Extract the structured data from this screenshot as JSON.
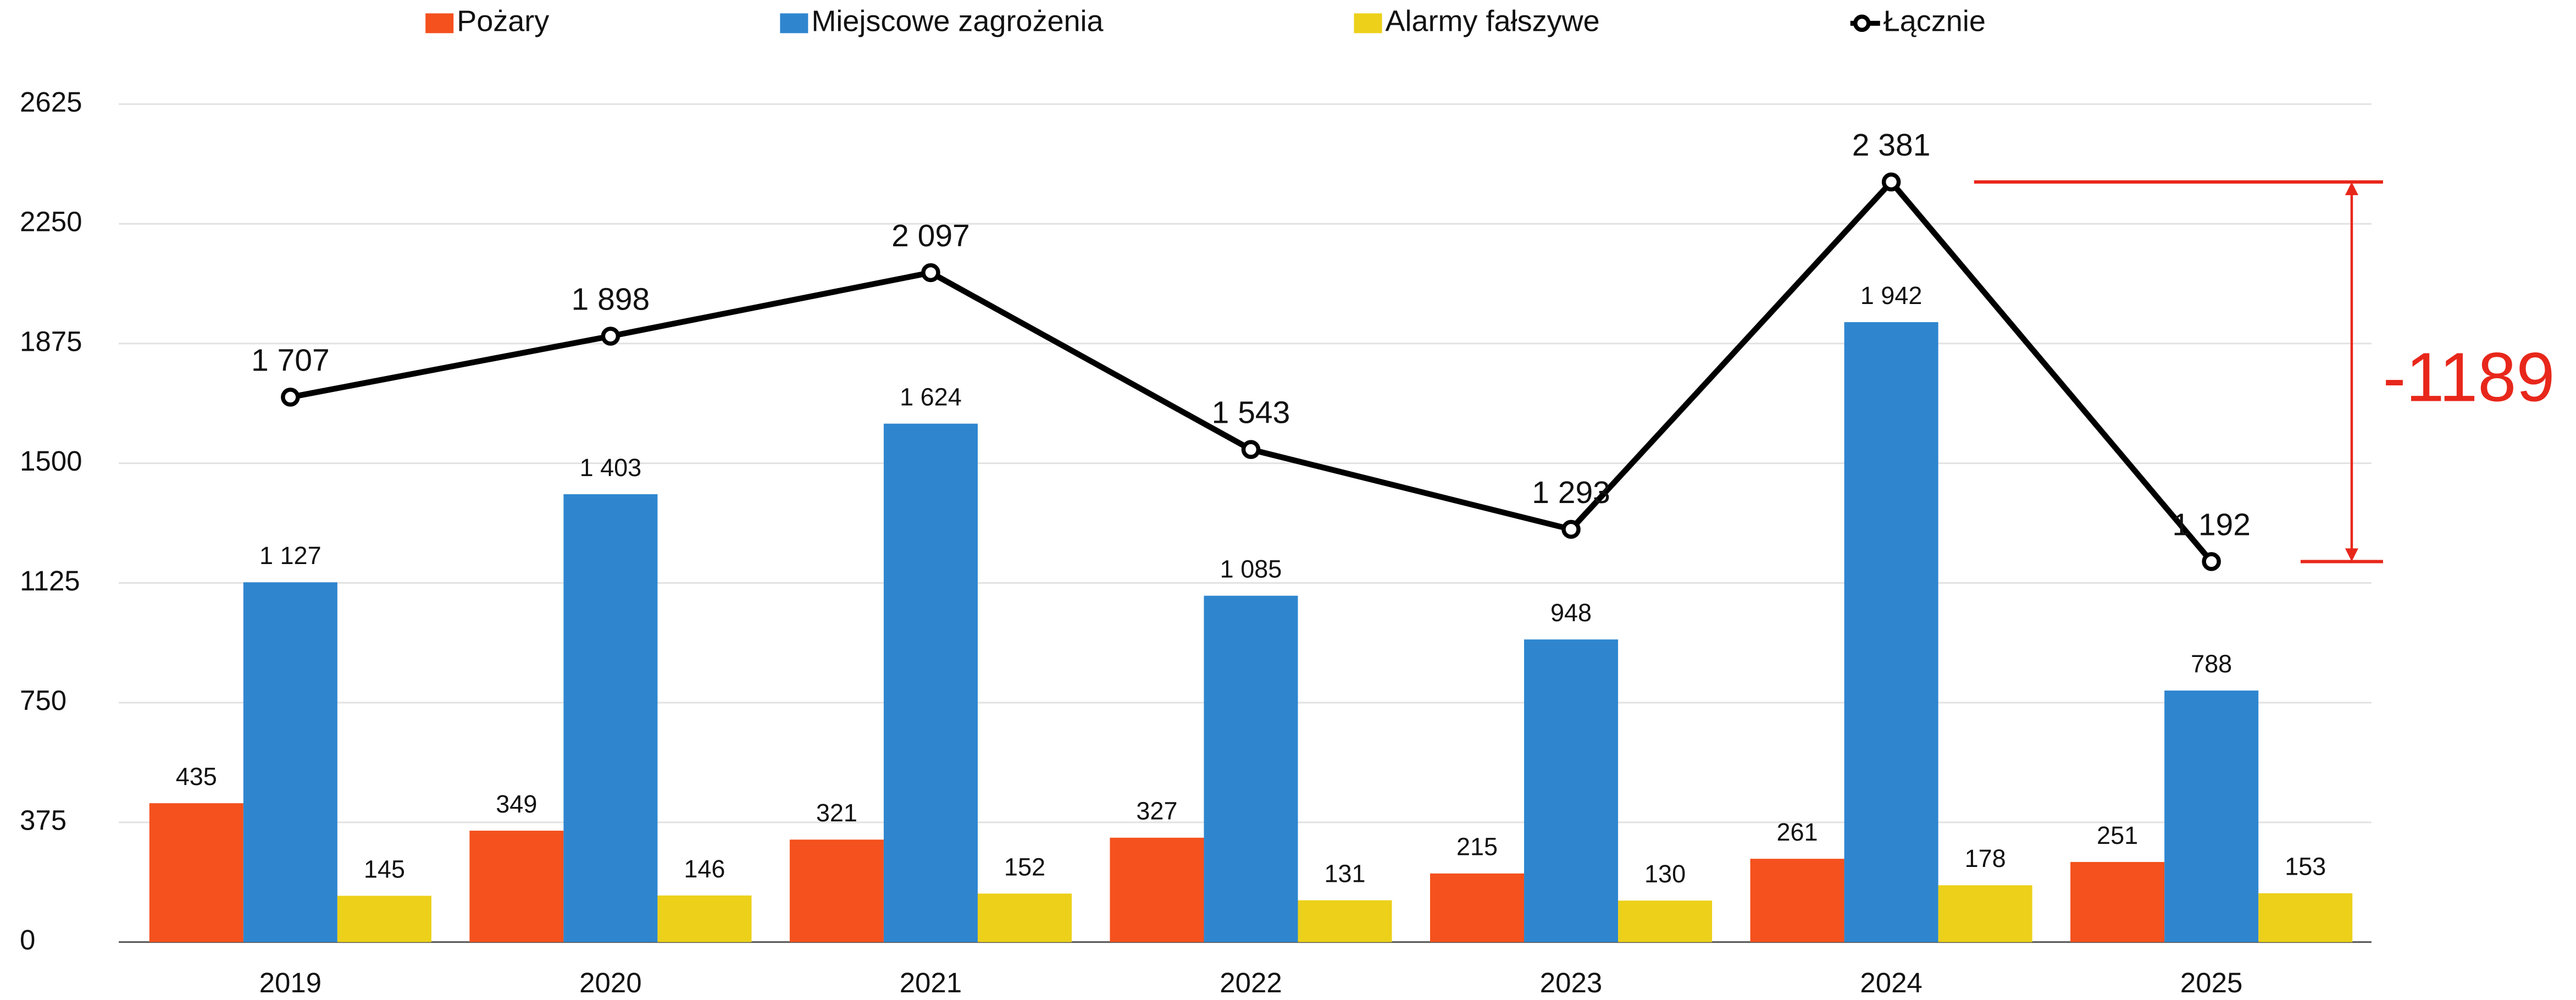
{
  "chart_data": {
    "type": "bar",
    "categories": [
      "2019",
      "2020",
      "2021",
      "2022",
      "2023",
      "2024",
      "2025"
    ],
    "series": [
      {
        "name": "Pożary",
        "color": "#f4511e",
        "values": [
          435,
          349,
          321,
          327,
          215,
          261,
          251
        ]
      },
      {
        "name": "Miejscowe zagrożenia",
        "color": "#2f86cf",
        "values": [
          1127,
          1403,
          1624,
          1085,
          948,
          1942,
          788
        ],
        "value_labels": [
          "1 127",
          "1 403",
          "1 624",
          "1 085",
          "948",
          "1 942",
          "788"
        ]
      },
      {
        "name": "Alarmy fałszywe",
        "color": "#ecd01a",
        "values": [
          145,
          146,
          152,
          131,
          130,
          178,
          153
        ]
      },
      {
        "name": "Łącznie",
        "type": "line",
        "color": "#000000",
        "values": [
          1707,
          1898,
          2097,
          1543,
          1293,
          2381,
          1192
        ],
        "value_labels": [
          "1 707",
          "1 898",
          "2 097",
          "1 543",
          "1 293",
          "2 381",
          "1 192"
        ]
      }
    ],
    "ylim": [
      0,
      2625
    ],
    "yticks": [
      0,
      375,
      750,
      1125,
      1500,
      1875,
      2250,
      2625
    ],
    "grid": true,
    "annotation": "-1189",
    "annotation_color": "#e8271b"
  }
}
